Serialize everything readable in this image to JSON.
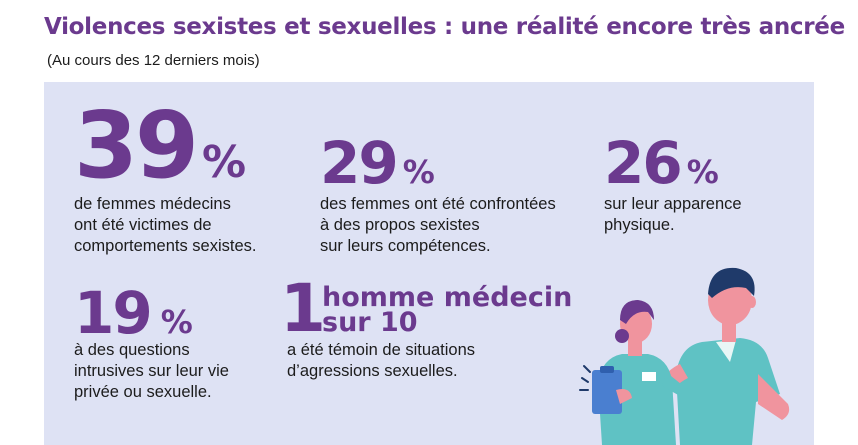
{
  "header": {
    "title": "Violences sexistes et sexuelles : une réalité encore très ancrée",
    "subtitle": "(Au cours des 12 derniers mois)"
  },
  "stats": [
    {
      "value": "39",
      "unit": "%",
      "lines": [
        "de femmes médecins",
        "ont été victimes de",
        "comportements sexistes."
      ]
    },
    {
      "value": "29",
      "unit": "%",
      "lines": [
        "des femmes ont été confrontées",
        "à des propos sexistes",
        "sur leurs compétences."
      ]
    },
    {
      "value": "26",
      "unit": "%",
      "lines": [
        "sur leur apparence",
        "physique."
      ]
    },
    {
      "value": "19",
      "unit": "%",
      "lines": [
        "à des questions",
        "intrusives sur leur vie",
        "privée ou sexuelle."
      ]
    },
    {
      "value": "1",
      "label_line1": "homme médecin",
      "label_line2": "sur 10",
      "lines": [
        "a été témoin de situations",
        "d’agressions sexuelles."
      ]
    }
  ],
  "illustration": {
    "subject": "female and male healthcare workers",
    "colors": {
      "scrubs": "#5fc2c4",
      "skin": "#f0949e",
      "hair": "#6b3a8e",
      "male_hair": "#1f3a6a",
      "clipboard": "#4a7fd0"
    },
    "icons": [
      "clipboard-icon",
      "badge-icon"
    ]
  },
  "palette": {
    "accent": "#6b3a8e",
    "panel": "#dee2f4",
    "text": "#1c1c1c"
  }
}
